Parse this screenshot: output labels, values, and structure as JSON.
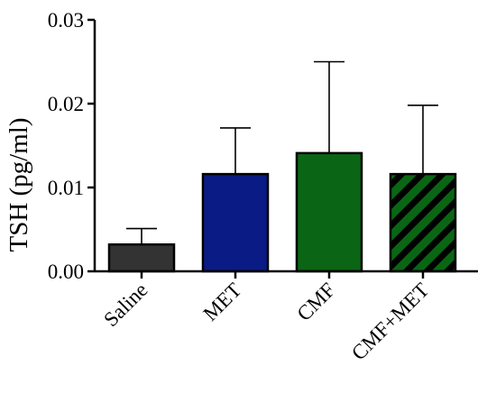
{
  "chart_data": {
    "type": "bar",
    "title": "",
    "xlabel": "",
    "ylabel": "TSH  (pg/ml)",
    "ylim": [
      0,
      0.03
    ],
    "yticks": [
      {
        "value": 0,
        "label": "0.00"
      },
      {
        "value": 0.01,
        "label": "0.01"
      },
      {
        "value": 0.02,
        "label": "0.02"
      },
      {
        "value": 0.03,
        "label": "0.03"
      }
    ],
    "categories": [
      "Saline",
      "MET",
      "CMF",
      "CMF+MET"
    ],
    "values": [
      0.0032,
      0.0116,
      0.0141,
      0.0116
    ],
    "error_upper": [
      0.0019,
      0.0055,
      0.0109,
      0.0082
    ],
    "bar_colors": [
      "#333333",
      "#0a1b86",
      "#0a6614",
      "#0a6614"
    ],
    "bar_patterns": [
      "solid",
      "solid",
      "solid",
      "diagonal-stripes"
    ],
    "stripe_color": "#000000",
    "grid": false,
    "legend": "none"
  }
}
